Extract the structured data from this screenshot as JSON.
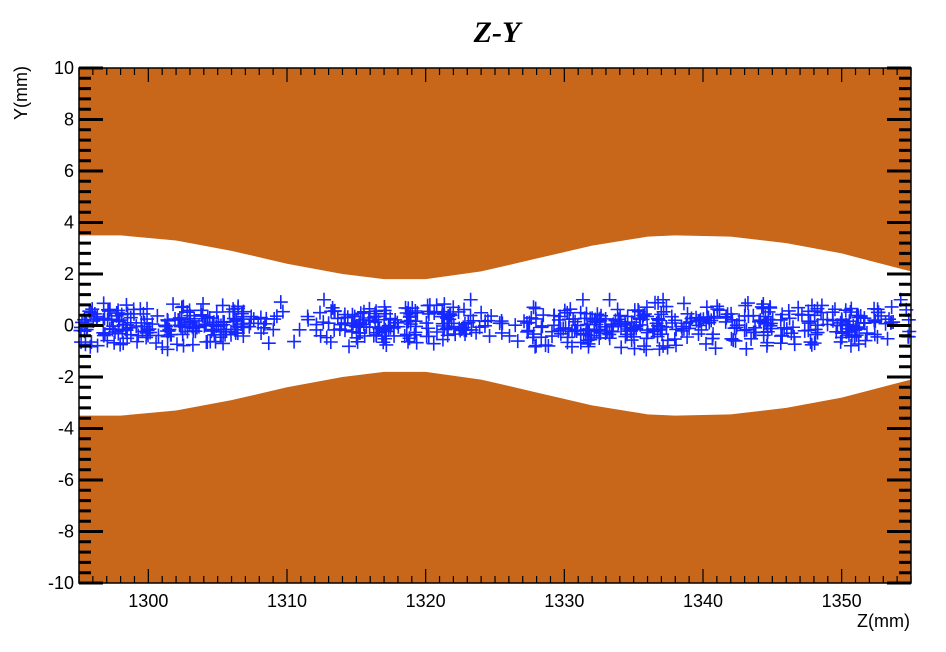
{
  "chart_data": {
    "type": "scatter",
    "title": "Z-Y",
    "xlabel": "Z(mm)",
    "ylabel": "Y(mm)",
    "xlim": [
      1295,
      1355
    ],
    "ylim": [
      -10,
      10
    ],
    "x_ticks": [
      1300,
      1310,
      1320,
      1330,
      1340,
      1350
    ],
    "y_ticks": [
      -10,
      -8,
      -6,
      -4,
      -2,
      0,
      2,
      4,
      6,
      8,
      10
    ],
    "grid": false,
    "legend": "none",
    "colors": {
      "aperture": "#c8661a",
      "markers": "#1428ff",
      "axes": "#000000"
    },
    "marker": "plus",
    "aperture_boundary": {
      "z": [
        1295,
        1298,
        1302,
        1306,
        1310,
        1314,
        1317,
        1320,
        1324,
        1328,
        1332,
        1336,
        1338,
        1342,
        1346,
        1350,
        1355
      ],
      "half": [
        3.5,
        3.5,
        3.3,
        2.9,
        2.4,
        2.0,
        1.8,
        1.8,
        2.1,
        2.6,
        3.1,
        3.45,
        3.5,
        3.45,
        3.2,
        2.8,
        2.1
      ]
    },
    "points": {
      "cluster_centers_z": [
        1298,
        1305,
        1316,
        1322,
        1331,
        1336,
        1343,
        1350
      ],
      "y_range": [
        -1.0,
        1.0
      ],
      "count": 720
    }
  }
}
